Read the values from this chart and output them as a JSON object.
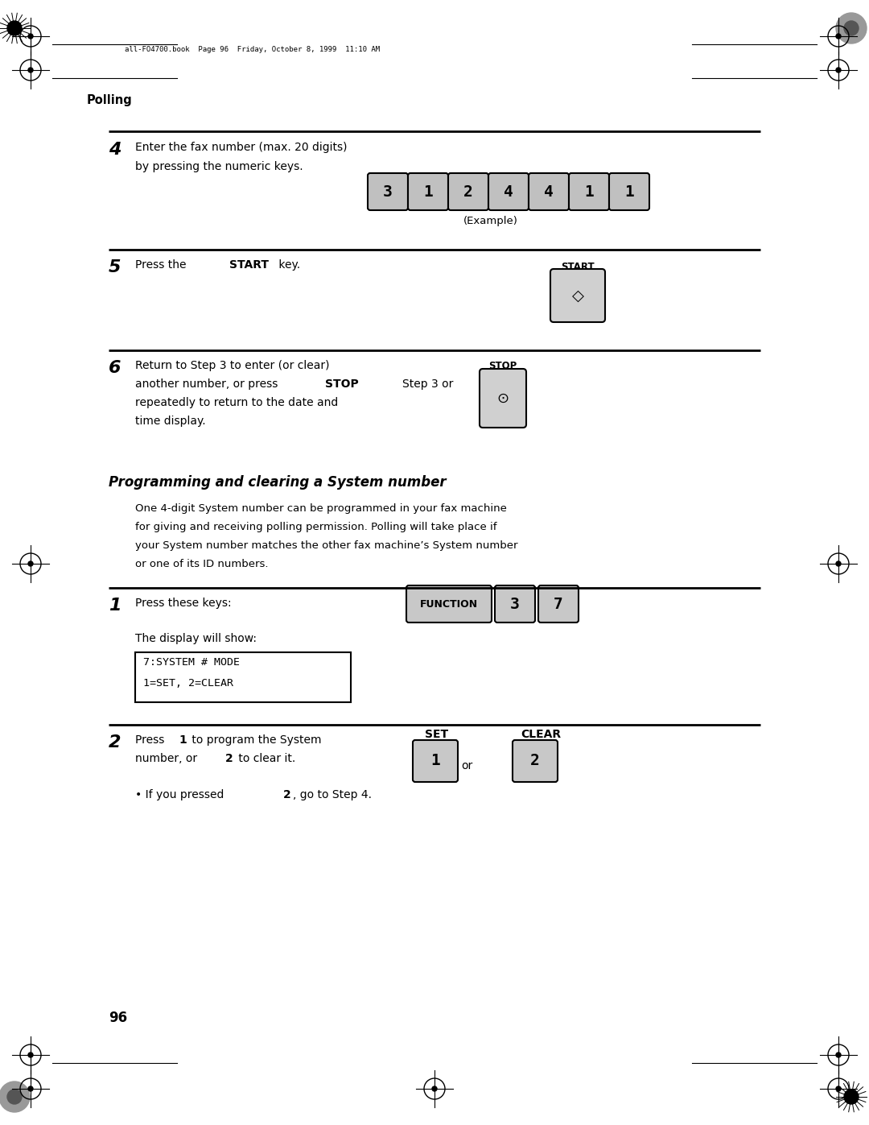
{
  "bg_color": "#ffffff",
  "page_width": 10.8,
  "page_height": 13.97,
  "header_text": "all-FO4700.book  Page 96  Friday, October 8, 1999  11:10 AM",
  "section_label": "Polling",
  "step4_number": "4",
  "step4_text1": "Enter the fax number (max. 20 digits)",
  "step4_text2": "by pressing the numeric keys.",
  "step4_keys": [
    "3",
    "1",
    "2",
    "4",
    "4",
    "1",
    "1"
  ],
  "step4_example": "(Example)",
  "step5_number": "5",
  "step5_text": "Press the ",
  "step5_bold": "START",
  "step5_text2": " key.",
  "step5_label": "START",
  "step6_number": "6",
  "step6_text1": "Return to Step 3 to enter (or clear)",
  "step6_text2": "another number, or press ",
  "step6_bold": "STOP",
  "step6_text3": "repeatedly to return to the date and",
  "step6_text4": "time display.",
  "step6_label": "STOP",
  "step6_prefix": "Step 3 or",
  "section_title": "Programming and clearing a System number",
  "para_text1": "One 4-digit System number can be programmed in your fax machine",
  "para_text2": "for giving and receiving polling permission. Polling will take place if",
  "para_text3": "your System number matches the other fax machine’s System number",
  "para_text4": "or one of its ID numbers.",
  "step1_number": "1",
  "step1_text": "Press these keys:",
  "step1_keys": [
    "FUNCTION",
    "3",
    "7"
  ],
  "step1_display1": "The display will show:",
  "step1_display_line1": "7:SYSTEM # MODE",
  "step1_display_line2": "1=SET, 2=CLEAR",
  "step2_number": "2",
  "step2_text1": "Press ",
  "step2_bold1": "1",
  "step2_text2": " to program the System",
  "step2_text3": "number, or ",
  "step2_bold2": "2",
  "step2_text4": " to clear it.",
  "step2_set_label": "SET",
  "step2_clear_label": "CLEAR",
  "step2_key1": "1",
  "step2_or": "or",
  "step2_key2": "2",
  "step2_bullet": "• If you pressed ",
  "step2_bold3": "2",
  "step2_bullet2": ", go to Step 4.",
  "page_number": "96",
  "line_color": "#000000",
  "key_bg": "#c8c8c8",
  "key_border": "#000000",
  "display_bg": "#ffffff",
  "display_border": "#000000"
}
